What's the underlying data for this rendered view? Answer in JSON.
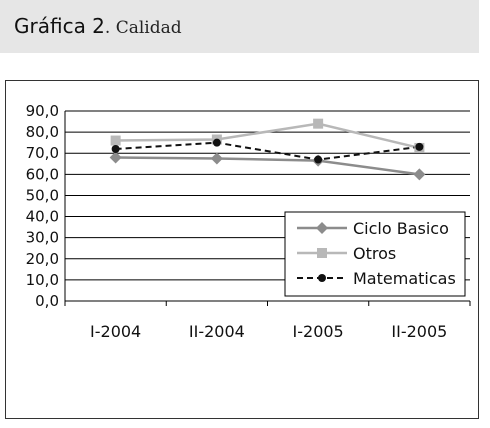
{
  "header": {
    "title_lead": "Gráfica 2",
    "title_rest": ". Calidad"
  },
  "chart_data": {
    "type": "line",
    "categories": [
      "I-2004",
      "II-2004",
      "I-2005",
      "II-2005"
    ],
    "ylim": [
      0,
      90
    ],
    "yticks": [
      "0,0",
      "10,0",
      "20,0",
      "30,0",
      "40,0",
      "50,0",
      "60,0",
      "70,0",
      "80,0",
      "90,0"
    ],
    "grid": "horizontal",
    "legend": "right-middle",
    "series": [
      {
        "name": "Ciclo Basico",
        "values": [
          68,
          67.5,
          66.5,
          60
        ],
        "color": "#8c8c8c",
        "marker": "diamond",
        "dash": "solid"
      },
      {
        "name": "Otros",
        "values": [
          76,
          76.5,
          84,
          72.5
        ],
        "color": "#b8b8b8",
        "marker": "square",
        "dash": "solid"
      },
      {
        "name": "Matematicas",
        "values": [
          72,
          75,
          67,
          73
        ],
        "color": "#111111",
        "marker": "circle",
        "dash": "dashed"
      }
    ]
  }
}
